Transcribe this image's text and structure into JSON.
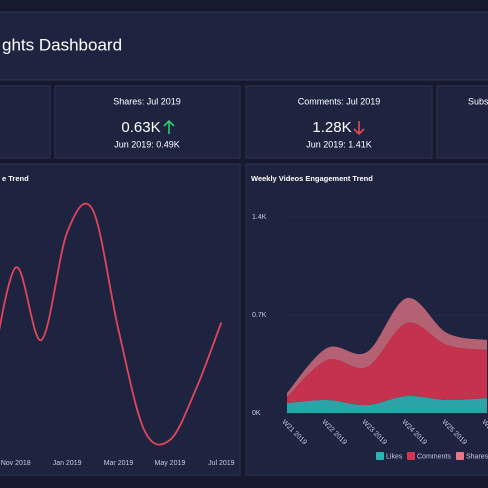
{
  "header": {
    "title": "ghts Dashboard"
  },
  "kpis": [
    {
      "label": "Shares: Jul 2019",
      "value": "0.63K",
      "previous": "Jun 2019: 0.49K"
    },
    {
      "label": "Comments: Jul 2019",
      "value": "1.28K",
      "previous": "Jun 2019: 1.41K"
    },
    {
      "label": "Subs"
    }
  ],
  "chart_data": [
    {
      "type": "line",
      "title": "e Trend",
      "categories": [
        null,
        "Nov 2018",
        null,
        "Jan 2019",
        null,
        "Mar 2019",
        null,
        "May 2019",
        null,
        "Jul 2019"
      ],
      "values": [
        28,
        73,
        44,
        87,
        96,
        48,
        8,
        4,
        24,
        51
      ],
      "color": "#e0455c",
      "ylim": [
        0,
        100
      ]
    },
    {
      "type": "stacked_area",
      "title": "Weekly Videos Engagement Trend",
      "categories": [
        "W21 2019",
        "W22 2019",
        "W23 2019",
        "W24 2019",
        "W25 2019",
        "W26 2019"
      ],
      "series": [
        {
          "name": "Likes",
          "color": "#2bb3b1",
          "values": [
            71,
            93,
            57,
            121,
            93,
            107
          ]
        },
        {
          "name": "Comments",
          "color": "#d63450",
          "values": [
            43,
            286,
            272,
            522,
            393,
            343
          ]
        },
        {
          "name": "Shares",
          "color": "#e87786",
          "values": [
            29,
            85,
            107,
            178,
            85,
            71
          ]
        }
      ],
      "ylim": [
        0,
        1400
      ],
      "yticks": [
        {
          "value": 0,
          "label": "0K"
        },
        {
          "value": 700,
          "label": "0.7K"
        },
        {
          "value": 1400,
          "label": "1.4K"
        }
      ]
    }
  ]
}
